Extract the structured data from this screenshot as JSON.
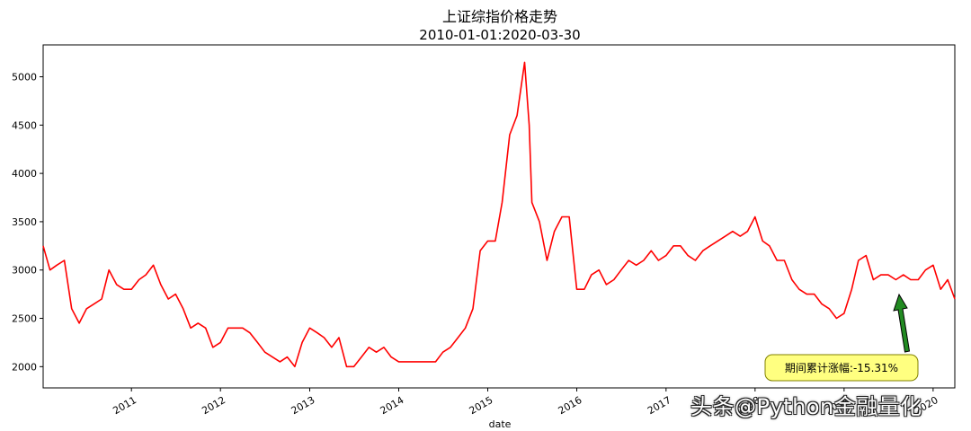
{
  "chart_data": {
    "type": "line",
    "title": "上证综指价格走势",
    "subtitle": "2010-01-01:2020-03-30",
    "xlabel": "date",
    "ylabel": "",
    "ylim": [
      1780,
      5330
    ],
    "xlim": [
      "2010-01-04",
      "2020-03-30"
    ],
    "yticks": [
      2000,
      2500,
      3000,
      3500,
      4000,
      4500,
      5000
    ],
    "xticks": [
      "2011",
      "2012",
      "2013",
      "2014",
      "2015",
      "2016",
      "2017",
      "2018",
      "2019",
      "2020"
    ],
    "grid": false,
    "line_color": "#ff0000",
    "series": [
      {
        "x": [
          "2010-01-04",
          "2010-02-01",
          "2010-03-01",
          "2010-04-01",
          "2010-05-01",
          "2010-06-01",
          "2010-07-01",
          "2010-08-01",
          "2010-09-01",
          "2010-10-01",
          "2010-11-01",
          "2010-12-01",
          "2011-01-01",
          "2011-02-01",
          "2011-03-01",
          "2011-04-01",
          "2011-05-01",
          "2011-06-01",
          "2011-07-01",
          "2011-08-01",
          "2011-09-01",
          "2011-10-01",
          "2011-11-01",
          "2011-12-01",
          "2012-01-01",
          "2012-02-01",
          "2012-03-01",
          "2012-04-01",
          "2012-05-01",
          "2012-06-01",
          "2012-07-01",
          "2012-08-01",
          "2012-09-01",
          "2012-10-01",
          "2012-11-01",
          "2012-12-01",
          "2013-01-01",
          "2013-02-01",
          "2013-03-01",
          "2013-04-01",
          "2013-05-01",
          "2013-06-01",
          "2013-07-01",
          "2013-08-01",
          "2013-09-01",
          "2013-10-01",
          "2013-11-01",
          "2013-12-01",
          "2014-01-01",
          "2014-02-01",
          "2014-03-01",
          "2014-04-01",
          "2014-05-01",
          "2014-06-01",
          "2014-07-01",
          "2014-08-01",
          "2014-09-01",
          "2014-10-01",
          "2014-11-01",
          "2014-12-01",
          "2015-01-01",
          "2015-02-01",
          "2015-03-01",
          "2015-04-01",
          "2015-05-01",
          "2015-06-01",
          "2015-06-20",
          "2015-07-01",
          "2015-08-01",
          "2015-09-01",
          "2015-10-01",
          "2015-11-01",
          "2015-12-01",
          "2016-01-01",
          "2016-02-01",
          "2016-03-01",
          "2016-04-01",
          "2016-05-01",
          "2016-06-01",
          "2016-07-01",
          "2016-08-01",
          "2016-09-01",
          "2016-10-01",
          "2016-11-01",
          "2016-12-01",
          "2017-01-01",
          "2017-02-01",
          "2017-03-01",
          "2017-04-01",
          "2017-05-01",
          "2017-06-01",
          "2017-07-01",
          "2017-08-01",
          "2017-09-01",
          "2017-10-01",
          "2017-11-01",
          "2017-12-01",
          "2018-01-01",
          "2018-02-01",
          "2018-03-01",
          "2018-04-01",
          "2018-05-01",
          "2018-06-01",
          "2018-07-01",
          "2018-08-01",
          "2018-09-01",
          "2018-10-01",
          "2018-11-01",
          "2018-12-01",
          "2019-01-01",
          "2019-02-01",
          "2019-03-01",
          "2019-04-01",
          "2019-05-01",
          "2019-06-01",
          "2019-07-01",
          "2019-08-01",
          "2019-09-01",
          "2019-10-01",
          "2019-11-01",
          "2019-12-01",
          "2020-01-01",
          "2020-02-01",
          "2020-03-01",
          "2020-03-30"
        ],
        "y": [
          3250,
          3000,
          3050,
          3100,
          2600,
          2450,
          2600,
          2650,
          2700,
          3000,
          2850,
          2800,
          2800,
          2900,
          2950,
          3050,
          2850,
          2700,
          2750,
          2600,
          2400,
          2450,
          2400,
          2200,
          2250,
          2400,
          2400,
          2400,
          2350,
          2250,
          2150,
          2100,
          2050,
          2100,
          2000,
          2250,
          2400,
          2350,
          2300,
          2200,
          2300,
          2000,
          2000,
          2100,
          2200,
          2150,
          2200,
          2100,
          2050,
          2050,
          2050,
          2050,
          2050,
          2050,
          2150,
          2200,
          2300,
          2400,
          2600,
          3200,
          3300,
          3300,
          3700,
          4400,
          4600,
          5150,
          4500,
          3700,
          3500,
          3100,
          3400,
          3550,
          3550,
          2800,
          2800,
          2950,
          3000,
          2850,
          2900,
          3000,
          3100,
          3050,
          3100,
          3200,
          3100,
          3150,
          3250,
          3250,
          3150,
          3100,
          3200,
          3250,
          3300,
          3350,
          3400,
          3350,
          3400,
          3550,
          3300,
          3250,
          3100,
          3100,
          2900,
          2800,
          2750,
          2750,
          2650,
          2600,
          2500,
          2550,
          2800,
          3100,
          3150,
          2900,
          2950,
          2950,
          2900,
          2950,
          2900,
          2900,
          3000,
          3050,
          2800,
          2900,
          2700
        ]
      }
    ],
    "annotation": {
      "text": "期间累计涨幅:-15.31%",
      "arrow_color": "#228B22",
      "box_color": "#ffff80"
    }
  },
  "watermark": "头条@Python金融量化"
}
